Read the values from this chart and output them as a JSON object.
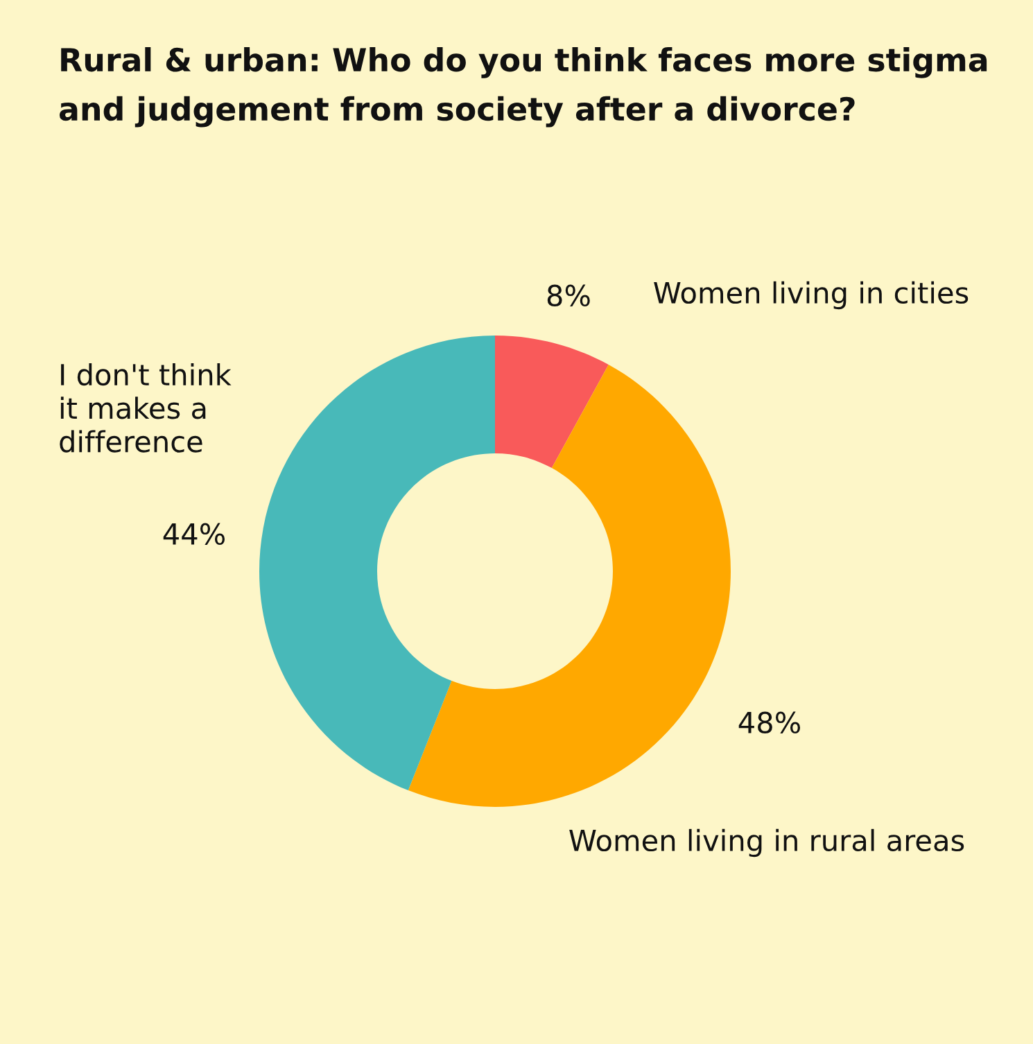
{
  "chart_data": {
    "type": "donut",
    "title": "Rural & urban: Who do you think faces more stigma\nand judgement from society after a divorce?",
    "categories": [
      "Women living in cities",
      "Women living in rural areas",
      "I don't think\nit makes a\ndifference"
    ],
    "values": [
      8,
      48,
      44
    ],
    "value_labels": [
      "8%",
      "48%",
      "44%"
    ],
    "colors": [
      "#f95a5a",
      "#ffa800",
      "#48b9b9"
    ],
    "legend": false
  }
}
